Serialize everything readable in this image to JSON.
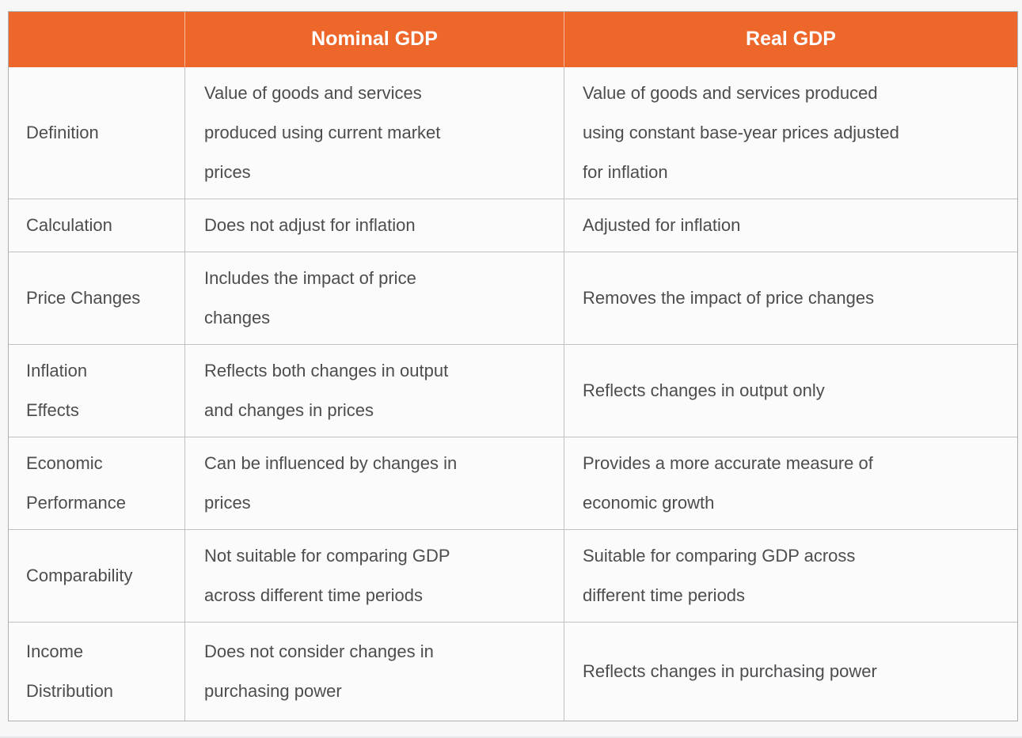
{
  "colors": {
    "header_bg": "#ED672B",
    "header_text": "#FFFFFF",
    "body_text": "#4D4D4F",
    "cell_bg": "#FBFBFC",
    "page_bg": "#F7F7F8",
    "grid_line": "#C0C1C2",
    "outer_border": "#AEAFB1"
  },
  "table": {
    "columns": [
      {
        "label": ""
      },
      {
        "label": "Nominal GDP"
      },
      {
        "label": "Real GDP"
      }
    ],
    "rows": [
      {
        "feature": "Definition",
        "nominal": "Value of goods and services produced using current market prices",
        "real": "Value of goods and services produced using constant base-year prices adjusted for inflation"
      },
      {
        "feature": "Calculation",
        "nominal": "Does not adjust for inflation",
        "real": "Adjusted for inflation"
      },
      {
        "feature": "Price Changes",
        "nominal": "Includes the impact of price changes",
        "real": "Removes the impact of price changes"
      },
      {
        "feature": "Inflation Effects",
        "nominal": "Reflects both changes in output and changes in prices",
        "real": "Reflects changes in output only"
      },
      {
        "feature": "Economic Performance",
        "nominal": "Can be influenced by changes in prices",
        "real": "Provides a more accurate measure of economic growth"
      },
      {
        "feature": "Comparability",
        "nominal": "Not suitable for comparing GDP across different time periods",
        "real": "Suitable for comparing GDP across different time periods"
      },
      {
        "feature": "Income Distribution",
        "nominal": "Does not consider changes in purchasing power",
        "real": "Reflects changes in purchasing power"
      }
    ]
  }
}
